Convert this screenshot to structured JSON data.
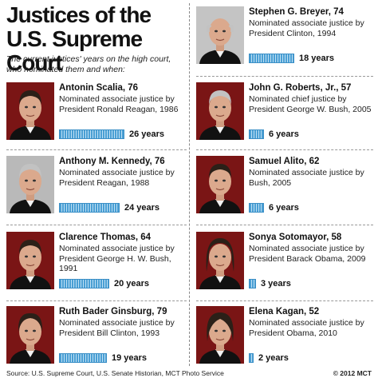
{
  "title_line1": "Justices of the",
  "title_line2": "U.S. Supreme Court",
  "intro": "The current justices' years on the high court, who nominated them and when:",
  "footer": {
    "source": "Source: U.S. Supreme Court, U.S. Senate Historian, MCT Photo Service",
    "copyright": "© 2012 MCT"
  },
  "chart_data": {
    "type": "bar",
    "title": "Justices of the U.S. Supreme Court",
    "categories": [
      "Antonin Scalia, 76",
      "Anthony M. Kennedy, 76",
      "Clarence Thomas, 64",
      "Ruth Bader Ginsburg, 79",
      "Stephen G. Breyer, 74",
      "John G. Roberts, Jr., 57",
      "Samuel Alito, 62",
      "Sonya Sotomayor, 58",
      "Elena Kagan, 52"
    ],
    "values": [
      26,
      24,
      20,
      19,
      18,
      6,
      6,
      3,
      2
    ],
    "unit": "years",
    "xlim": [
      0,
      26
    ]
  },
  "justices": [
    {
      "name": "Antonin Scalia, 76",
      "desc": "Nominated associate justice by President Ronald Reagan, 1986",
      "years": 26,
      "years_label": "26 years",
      "photo": "scalia-portrait"
    },
    {
      "name": "Anthony M. Kennedy, 76",
      "desc": "Nominated associate justice by President Reagan, 1988",
      "years": 24,
      "years_label": "24 years",
      "photo": "kennedy-portrait"
    },
    {
      "name": "Clarence Thomas, 64",
      "desc": "Nominated associate justice by President George H. W. Bush, 1991",
      "years": 20,
      "years_label": "20 years",
      "photo": "thomas-portrait"
    },
    {
      "name": "Ruth Bader Ginsburg, 79",
      "desc": "Nominated associate justice by President Bill Clinton, 1993",
      "years": 19,
      "years_label": "19 years",
      "photo": "ginsburg-portrait"
    },
    {
      "name": "Stephen G. Breyer, 74",
      "desc": "Nominated associate justice by President Clinton, 1994",
      "years": 18,
      "years_label": "18 years",
      "photo": "breyer-portrait"
    },
    {
      "name": "John G. Roberts, Jr., 57",
      "desc": "Nominated chief justice by President George W. Bush, 2005",
      "years": 6,
      "years_label": "6 years",
      "photo": "roberts-portrait"
    },
    {
      "name": "Samuel Alito, 62",
      "desc": "Nominated associate justice by Bush, 2005",
      "years": 6,
      "years_label": "6 years",
      "photo": "alito-portrait"
    },
    {
      "name": "Sonya Sotomayor, 58",
      "desc": "Nominated associate justice by President Barack Obama, 2009",
      "years": 3,
      "years_label": "3 years",
      "photo": "sotomayor-portrait"
    },
    {
      "name": "Elena Kagan, 52",
      "desc": "Nominated associate justice by President Obama, 2010",
      "years": 2,
      "years_label": "2 years",
      "photo": "kagan-portrait"
    }
  ],
  "colors": {
    "bar": "#4a9fd4",
    "bar_light": "#bfe0f4",
    "robe": "#111111",
    "skin": "#d9a98a",
    "hair_gray": "#b8b8b8"
  }
}
